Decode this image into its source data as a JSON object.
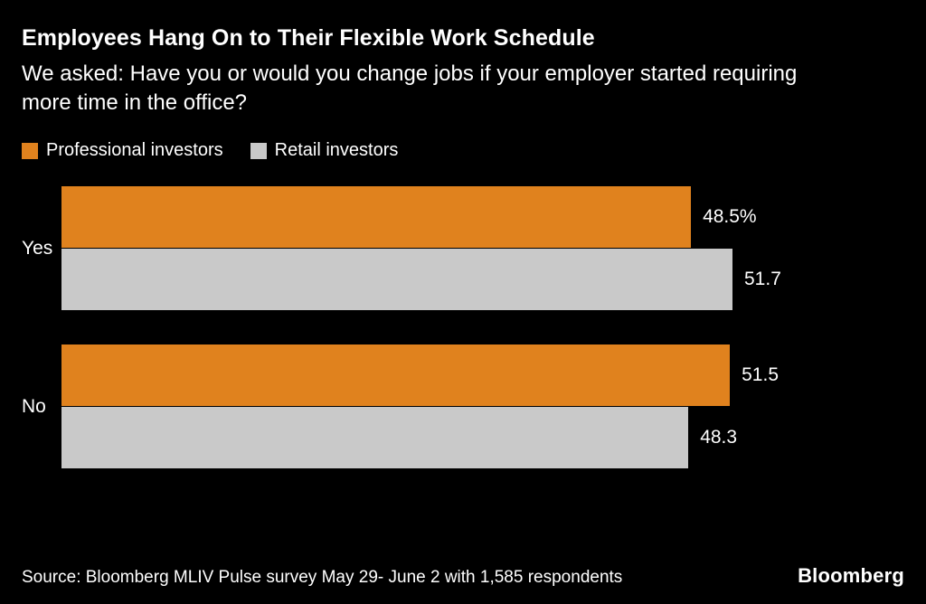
{
  "chart_data": {
    "type": "bar",
    "orientation": "horizontal",
    "title": "Employees Hang On to Their Flexible Work Schedule",
    "subtitle": "We asked: Have you or would you change jobs if your employer started requiring more time in the office?",
    "categories": [
      "Yes",
      "No"
    ],
    "series": [
      {
        "name": "Professional investors",
        "color": "#E0821E",
        "values": [
          48.5,
          51.5
        ]
      },
      {
        "name": "Retail investors",
        "color": "#C9C9C9",
        "values": [
          51.7,
          48.3
        ]
      }
    ],
    "value_labels": [
      [
        "48.5%",
        "51.5"
      ],
      [
        "51.7",
        "48.3"
      ]
    ],
    "xlim": [
      0,
      51.7
    ],
    "grid": false,
    "legend_position": "top-left"
  },
  "footer": {
    "source": "Source: Bloomberg MLIV Pulse survey May 29- June 2 with 1,585 respondents",
    "brand": "Bloomberg"
  }
}
